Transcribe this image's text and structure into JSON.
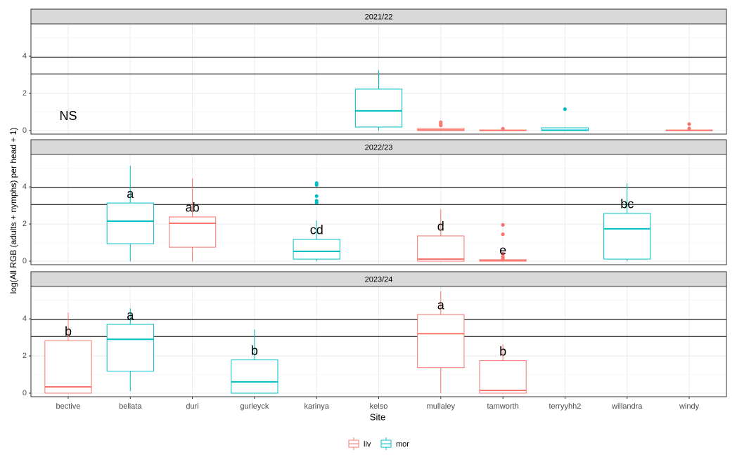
{
  "chart_data": {
    "type": "box",
    "xlabel": "Site",
    "ylabel": "log(All RGB (adults + nymphs) per head + 1)",
    "categories": [
      "bective",
      "bellata",
      "duri",
      "gurleyck",
      "karinya",
      "kelso",
      "mullaley",
      "tamworth",
      "terryyhh2",
      "willandra",
      "windy"
    ],
    "series": [
      {
        "name": "liv",
        "color": "#F8766D"
      },
      {
        "name": "mor",
        "color": "#00BFC4"
      }
    ],
    "ylim": [
      -0.19,
      5.74
    ],
    "yticks": [
      0,
      2,
      4
    ],
    "minor_yticks": [
      1,
      3,
      5
    ],
    "hlines": [
      3.05,
      3.95
    ],
    "grid": true,
    "facets": [
      {
        "title": "2021/22",
        "letters": [
          "NS",
          null,
          null,
          null,
          null,
          null,
          null,
          null,
          null,
          null,
          null
        ],
        "boxes": [
          [
            null,
            null,
            null,
            null,
            null,
            null,
            {
              "min": 0,
              "q1": 0,
              "median": 0.03,
              "q3": 0.11,
              "max": 0.11,
              "outliers": [
                0.45,
                0.35,
                0.28
              ]
            },
            {
              "min": 0,
              "q1": 0,
              "median": 0.01,
              "q3": 0.03,
              "max": 0.05,
              "outliers": [
                0.1
              ]
            },
            null,
            null,
            {
              "min": 0,
              "q1": 0,
              "median": 0.01,
              "q3": 0.03,
              "max": 0.05,
              "outliers": [
                0.35,
                0.12
              ]
            }
          ],
          [
            null,
            null,
            null,
            null,
            null,
            {
              "min": 0,
              "q1": 0.19,
              "median": 1.06,
              "q3": 2.23,
              "max": 3.25,
              "outliers": []
            },
            null,
            null,
            {
              "min": 0,
              "q1": 0,
              "median": 0.02,
              "q3": 0.15,
              "max": 0.18,
              "outliers": [
                1.15
              ]
            },
            null,
            null
          ]
        ]
      },
      {
        "title": "2022/23",
        "letters": [
          null,
          "a",
          "ab",
          null,
          "cd",
          null,
          "d",
          "e",
          null,
          "bc",
          null
        ],
        "boxes": [
          [
            null,
            null,
            {
              "min": 0,
              "q1": 0.75,
              "median": 2.04,
              "q3": 2.38,
              "max": 4.45,
              "outliers": []
            },
            null,
            null,
            null,
            {
              "min": 0,
              "q1": 0,
              "median": 0.11,
              "q3": 1.36,
              "max": 2.79,
              "outliers": []
            },
            {
              "min": 0,
              "q1": 0,
              "median": 0.02,
              "q3": 0.08,
              "max": 0.1,
              "outliers": [
                1.95,
                1.45,
                0.4,
                0.25,
                0.15
              ]
            },
            null,
            null,
            null
          ],
          [
            null,
            {
              "min": 0,
              "q1": 0.94,
              "median": 2.15,
              "q3": 3.13,
              "max": 5.13,
              "outliers": []
            },
            null,
            null,
            {
              "min": 0,
              "q1": 0.11,
              "median": 0.53,
              "q3": 1.17,
              "max": 2.19,
              "outliers": [
                4.2,
                4.1,
                3.5,
                3.25,
                3.15
              ]
            },
            null,
            null,
            null,
            null,
            {
              "min": 0,
              "q1": 0.11,
              "median": 1.74,
              "q3": 2.57,
              "max": 4.19,
              "outliers": []
            },
            null
          ]
        ]
      },
      {
        "title": "2023/24",
        "letters": [
          "b",
          "a",
          null,
          "b",
          null,
          null,
          "a",
          "b",
          null,
          null,
          null
        ],
        "boxes": [
          [
            {
              "min": 0,
              "q1": 0,
              "median": 0.34,
              "q3": 2.82,
              "max": 4.34,
              "outliers": []
            },
            null,
            null,
            null,
            null,
            null,
            {
              "min": 0,
              "q1": 1.37,
              "median": 3.2,
              "q3": 4.23,
              "max": 5.49,
              "outliers": []
            },
            {
              "min": 0,
              "q1": 0,
              "median": 0.15,
              "q3": 1.75,
              "max": 2.63,
              "outliers": []
            },
            null,
            null,
            null
          ],
          [
            null,
            {
              "min": 0.11,
              "q1": 1.18,
              "median": 2.9,
              "q3": 3.7,
              "max": 4.57,
              "outliers": []
            },
            null,
            {
              "min": 0,
              "q1": 0,
              "median": 0.61,
              "q3": 1.79,
              "max": 3.43,
              "outliers": []
            },
            null,
            null,
            null,
            null,
            null,
            null,
            null
          ]
        ]
      }
    ]
  }
}
